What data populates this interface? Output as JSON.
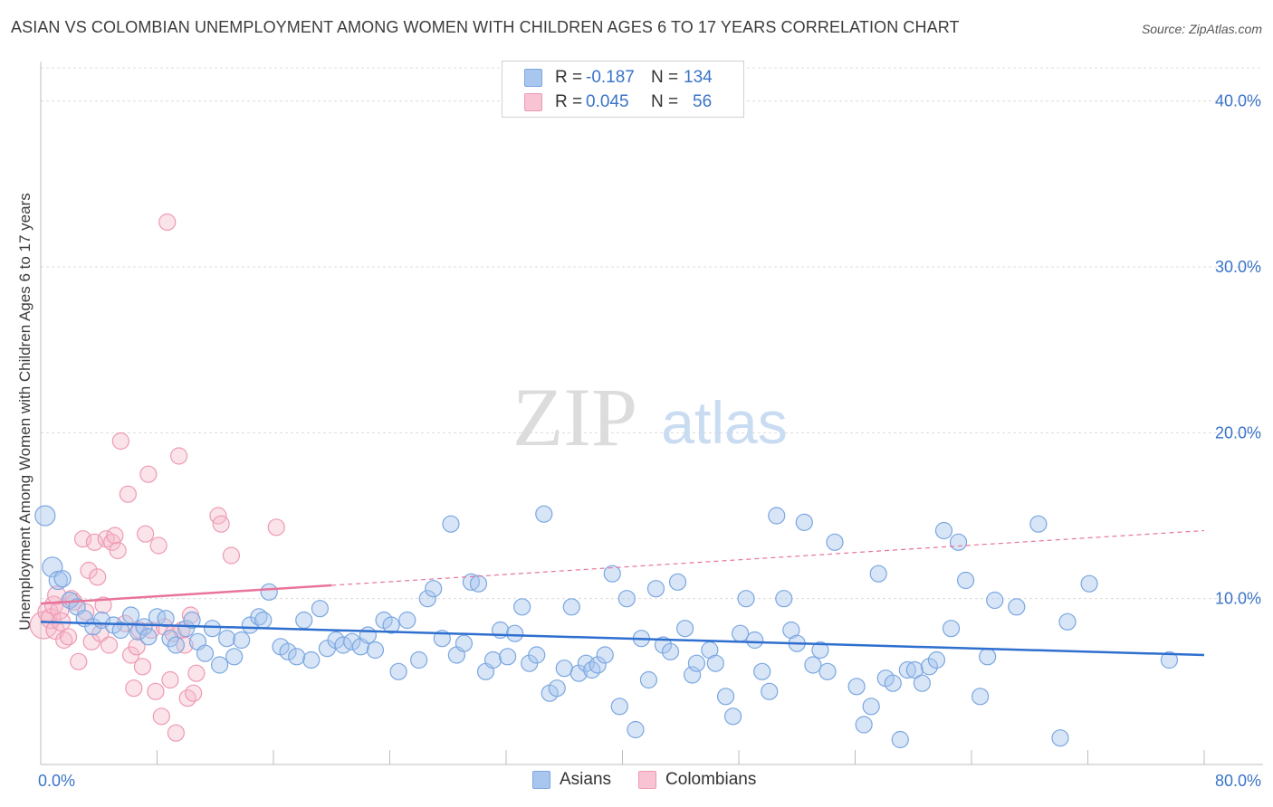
{
  "chart_data": {
    "type": "scatter",
    "title": "ASIAN VS COLOMBIAN UNEMPLOYMENT AMONG WOMEN WITH CHILDREN AGES 6 TO 17 YEARS CORRELATION CHART",
    "source": "Source: ZipAtlas.com",
    "xlabel": "",
    "ylabel": "Unemployment Among Women with Children Ages 6 to 17 years",
    "xlim": [
      0,
      80
    ],
    "ylim": [
      0,
      42
    ],
    "x_tick_labels": [
      "0.0%",
      "80.0%"
    ],
    "y_ticks": [
      10,
      20,
      30,
      40
    ],
    "y_tick_labels": [
      "10.0%",
      "20.0%",
      "30.0%",
      "40.0%"
    ],
    "watermark": "ZIPatlas",
    "legend": {
      "rows": [
        {
          "name": "Asians",
          "r_label": "R =",
          "r_value": "-0.187",
          "n_label": "N =",
          "n_value": "134"
        },
        {
          "name": "Colombians",
          "r_label": "R =",
          "r_value": "0.045",
          "n_label": "N =",
          "n_value": "56"
        }
      ]
    },
    "series": [
      {
        "name": "Asians",
        "color": "#7aa7e0",
        "fill": "rgba(168,198,238,0.45)",
        "trend": {
          "x": [
            0,
            80
          ],
          "y": [
            8.6,
            6.6
          ],
          "color": "#2f6fcf",
          "style": "solid"
        },
        "points": [
          [
            0.3,
            15.0,
            9
          ],
          [
            0.8,
            11.9,
            9
          ],
          [
            1.2,
            11.1,
            8
          ],
          [
            1.5,
            11.2,
            7
          ],
          [
            2.0,
            9.9,
            7
          ],
          [
            2.5,
            9.5,
            7
          ],
          [
            3.0,
            8.8,
            7
          ],
          [
            3.6,
            8.3,
            7
          ],
          [
            4.2,
            8.7,
            7
          ],
          [
            5.0,
            8.4,
            7
          ],
          [
            5.5,
            8.1,
            7
          ],
          [
            6.2,
            9.0,
            7
          ],
          [
            6.7,
            8.0,
            7
          ],
          [
            7.1,
            8.3,
            7
          ],
          [
            7.4,
            7.7,
            7
          ],
          [
            8.0,
            8.9,
            7
          ],
          [
            8.6,
            8.8,
            7
          ],
          [
            8.9,
            7.6,
            7
          ],
          [
            9.3,
            7.2,
            7
          ],
          [
            10.0,
            8.2,
            7
          ],
          [
            10.4,
            8.7,
            7
          ],
          [
            10.8,
            7.4,
            7
          ],
          [
            11.3,
            6.7,
            7
          ],
          [
            11.8,
            8.2,
            7
          ],
          [
            12.3,
            6.0,
            7
          ],
          [
            12.8,
            7.6,
            7
          ],
          [
            13.3,
            6.5,
            7
          ],
          [
            13.8,
            7.5,
            7
          ],
          [
            14.4,
            8.4,
            7
          ],
          [
            15.0,
            8.9,
            7
          ],
          [
            15.3,
            8.7,
            7
          ],
          [
            15.7,
            10.4,
            7
          ],
          [
            16.5,
            7.1,
            7
          ],
          [
            17.0,
            6.8,
            7
          ],
          [
            17.6,
            6.5,
            7
          ],
          [
            18.1,
            8.7,
            7
          ],
          [
            18.6,
            6.3,
            7
          ],
          [
            19.2,
            9.4,
            7
          ],
          [
            19.7,
            7.0,
            7
          ],
          [
            20.3,
            7.5,
            7
          ],
          [
            20.8,
            7.2,
            7
          ],
          [
            21.4,
            7.4,
            7
          ],
          [
            22.0,
            7.1,
            7
          ],
          [
            22.5,
            7.8,
            7
          ],
          [
            23.0,
            6.9,
            7
          ],
          [
            23.6,
            8.7,
            7
          ],
          [
            24.1,
            8.4,
            7
          ],
          [
            24.6,
            5.6,
            7
          ],
          [
            25.2,
            8.7,
            7
          ],
          [
            26.0,
            6.3,
            7
          ],
          [
            26.6,
            10.0,
            7
          ],
          [
            27.0,
            10.6,
            7
          ],
          [
            27.6,
            7.6,
            7
          ],
          [
            28.2,
            14.5,
            7
          ],
          [
            28.6,
            6.6,
            7
          ],
          [
            29.1,
            7.3,
            7
          ],
          [
            29.6,
            11.0,
            7
          ],
          [
            30.1,
            10.9,
            7
          ],
          [
            30.6,
            5.6,
            7
          ],
          [
            31.1,
            6.3,
            7
          ],
          [
            31.6,
            8.1,
            7
          ],
          [
            32.1,
            6.5,
            7
          ],
          [
            32.6,
            7.9,
            7
          ],
          [
            33.1,
            9.5,
            7
          ],
          [
            33.6,
            6.1,
            7
          ],
          [
            34.1,
            6.6,
            7
          ],
          [
            34.6,
            15.1,
            7
          ],
          [
            35.0,
            4.3,
            7
          ],
          [
            35.5,
            4.6,
            7
          ],
          [
            36.0,
            5.8,
            7
          ],
          [
            36.5,
            9.5,
            7
          ],
          [
            37.0,
            5.5,
            7
          ],
          [
            37.5,
            6.1,
            7
          ],
          [
            37.9,
            5.7,
            7
          ],
          [
            38.3,
            6.0,
            7
          ],
          [
            38.8,
            6.6,
            7
          ],
          [
            39.3,
            11.5,
            7
          ],
          [
            39.8,
            3.5,
            7
          ],
          [
            40.3,
            10.0,
            7
          ],
          [
            40.9,
            2.1,
            7
          ],
          [
            41.3,
            7.6,
            7
          ],
          [
            41.8,
            5.1,
            7
          ],
          [
            42.3,
            10.6,
            7
          ],
          [
            42.8,
            7.2,
            7
          ],
          [
            43.3,
            6.8,
            7
          ],
          [
            43.8,
            11.0,
            7
          ],
          [
            44.3,
            8.2,
            7
          ],
          [
            44.8,
            5.4,
            7
          ],
          [
            45.1,
            6.1,
            7
          ],
          [
            46.0,
            6.9,
            7
          ],
          [
            46.4,
            6.1,
            7
          ],
          [
            47.1,
            4.1,
            7
          ],
          [
            47.6,
            2.9,
            7
          ],
          [
            48.1,
            7.9,
            7
          ],
          [
            48.5,
            10.0,
            7
          ],
          [
            49.1,
            7.5,
            7
          ],
          [
            49.6,
            5.6,
            7
          ],
          [
            50.1,
            4.4,
            7
          ],
          [
            50.6,
            15.0,
            7
          ],
          [
            51.1,
            10.0,
            7
          ],
          [
            51.6,
            8.1,
            7
          ],
          [
            52.0,
            7.3,
            7
          ],
          [
            52.5,
            14.6,
            7
          ],
          [
            53.1,
            6.0,
            7
          ],
          [
            53.6,
            6.9,
            7
          ],
          [
            54.1,
            5.6,
            7
          ],
          [
            54.6,
            13.4,
            7
          ],
          [
            56.1,
            4.7,
            7
          ],
          [
            56.6,
            2.4,
            7
          ],
          [
            57.1,
            3.5,
            7
          ],
          [
            57.6,
            11.5,
            7
          ],
          [
            58.1,
            5.2,
            7
          ],
          [
            58.6,
            4.9,
            7
          ],
          [
            59.1,
            1.5,
            7
          ],
          [
            59.6,
            5.7,
            7
          ],
          [
            60.1,
            5.7,
            7
          ],
          [
            60.6,
            4.9,
            7
          ],
          [
            61.1,
            5.9,
            7
          ],
          [
            61.6,
            6.3,
            7
          ],
          [
            62.1,
            14.1,
            7
          ],
          [
            62.6,
            8.2,
            7
          ],
          [
            63.1,
            13.4,
            7
          ],
          [
            63.6,
            11.1,
            7
          ],
          [
            64.6,
            4.1,
            7
          ],
          [
            65.1,
            6.5,
            7
          ],
          [
            65.6,
            9.9,
            7
          ],
          [
            67.1,
            9.5,
            7
          ],
          [
            68.6,
            14.5,
            7
          ],
          [
            70.1,
            1.6,
            7
          ],
          [
            70.6,
            8.6,
            7
          ],
          [
            72.1,
            10.9,
            7
          ],
          [
            77.6,
            6.3,
            7
          ]
        ]
      },
      {
        "name": "Colombians",
        "color": "#ee9ab2",
        "fill": "rgba(246,185,202,0.4)",
        "trend": {
          "x": [
            0,
            20
          ],
          "y": [
            9.7,
            10.8
          ],
          "x_dashed": [
            20,
            80
          ],
          "y_dashed": [
            10.8,
            14.1
          ],
          "color": "#e8749a"
        },
        "points": [
          [
            0.2,
            8.4,
            13
          ],
          [
            0.5,
            9.2,
            9
          ],
          [
            0.7,
            8.8,
            9
          ],
          [
            0.9,
            9.6,
            8
          ],
          [
            1.0,
            8.1,
            8
          ],
          [
            1.1,
            10.2,
            8
          ],
          [
            1.3,
            9.3,
            8
          ],
          [
            1.4,
            8.6,
            8
          ],
          [
            1.6,
            7.5,
            7
          ],
          [
            1.9,
            7.7,
            7
          ],
          [
            2.1,
            10.0,
            7
          ],
          [
            2.3,
            9.8,
            7
          ],
          [
            2.6,
            6.2,
            7
          ],
          [
            2.9,
            13.6,
            7
          ],
          [
            3.1,
            9.2,
            7
          ],
          [
            3.3,
            11.7,
            7
          ],
          [
            3.5,
            7.4,
            7
          ],
          [
            3.7,
            13.4,
            7
          ],
          [
            3.9,
            11.3,
            7
          ],
          [
            4.1,
            7.9,
            7
          ],
          [
            4.3,
            9.6,
            7
          ],
          [
            4.5,
            13.6,
            7
          ],
          [
            4.7,
            7.2,
            7
          ],
          [
            4.9,
            13.4,
            7
          ],
          [
            5.1,
            13.8,
            7
          ],
          [
            5.3,
            12.9,
            7
          ],
          [
            5.5,
            19.5,
            7
          ],
          [
            5.8,
            8.5,
            7
          ],
          [
            6.0,
            16.3,
            7
          ],
          [
            6.2,
            6.6,
            7
          ],
          [
            6.4,
            4.6,
            7
          ],
          [
            6.6,
            7.1,
            7
          ],
          [
            6.8,
            8.1,
            7
          ],
          [
            7.0,
            5.9,
            7
          ],
          [
            7.2,
            13.9,
            7
          ],
          [
            7.4,
            17.5,
            7
          ],
          [
            7.6,
            8.1,
            7
          ],
          [
            7.9,
            4.4,
            7
          ],
          [
            8.1,
            13.2,
            7
          ],
          [
            8.3,
            2.9,
            7
          ],
          [
            8.5,
            8.3,
            7
          ],
          [
            8.7,
            32.7,
            7
          ],
          [
            8.9,
            5.1,
            7
          ],
          [
            9.1,
            7.9,
            7
          ],
          [
            9.3,
            1.9,
            7
          ],
          [
            9.5,
            18.6,
            7
          ],
          [
            9.7,
            8.1,
            7
          ],
          [
            9.9,
            7.2,
            7
          ],
          [
            10.1,
            4.0,
            7
          ],
          [
            10.3,
            9.0,
            7
          ],
          [
            10.5,
            4.3,
            7
          ],
          [
            10.7,
            5.5,
            7
          ],
          [
            12.2,
            15.0,
            7
          ],
          [
            12.4,
            14.5,
            7
          ],
          [
            13.1,
            12.6,
            7
          ],
          [
            16.2,
            14.3,
            7
          ]
        ]
      }
    ]
  }
}
